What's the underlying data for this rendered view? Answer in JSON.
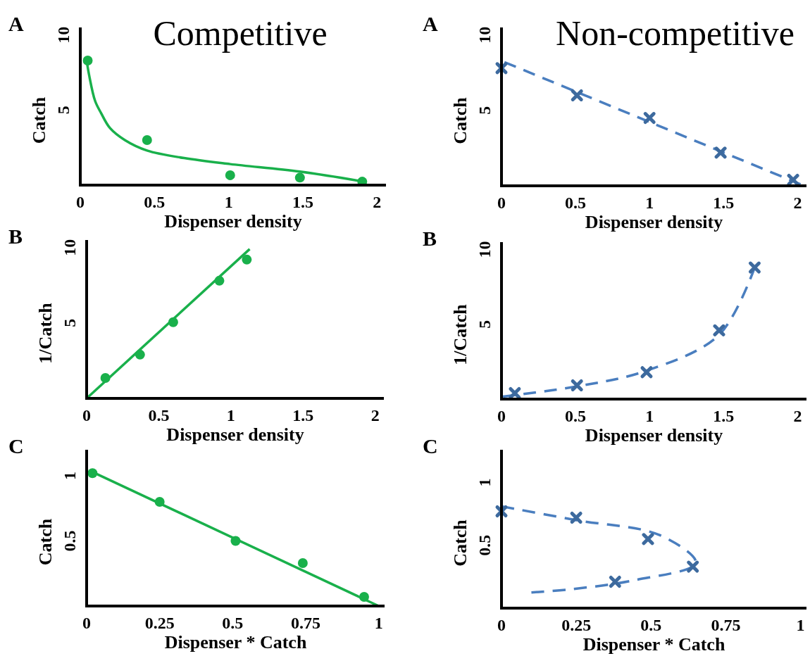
{
  "chart_data": [
    {
      "type": "scatter",
      "title": "Competitive",
      "xlabel": "Dispenser density",
      "ylabel": "Catch",
      "xlim": [
        0,
        2.06
      ],
      "ylim": [
        0,
        10.5
      ],
      "xticks": [
        0,
        0.5,
        1,
        1.5,
        2
      ],
      "yticks": [
        5,
        10
      ],
      "annotations": [
        "A"
      ],
      "series": [
        {
          "type": "scatter",
          "color": "#19b04b",
          "marker": "circle",
          "x": [
            0.05,
            0.45,
            1.01,
            1.48,
            1.9
          ],
          "values": [
            8.3,
            3.0,
            0.66,
            0.5,
            0.23
          ]
        },
        {
          "type": "line",
          "color": "#19b04b",
          "line_style": "solid",
          "x": [
            0.04,
            0.06,
            0.1,
            0.14,
            0.2,
            0.3,
            0.45,
            0.7,
            1.01,
            1.48,
            1.9
          ],
          "values": [
            8.5,
            7.3,
            5.6,
            4.8,
            3.8,
            3.0,
            2.3,
            1.8,
            1.4,
            0.9,
            0.25
          ]
        }
      ]
    },
    {
      "type": "scatter",
      "title": "Non-competitive",
      "xlabel": "Dispenser density",
      "ylabel": "Catch",
      "xlim": [
        0,
        2.06
      ],
      "ylim": [
        0,
        10.5
      ],
      "xticks": [
        0,
        0.5,
        1,
        1.5,
        2
      ],
      "yticks": [
        5,
        10
      ],
      "annotations": [
        "A"
      ],
      "series": [
        {
          "type": "scatter",
          "color": "#3d6a9e",
          "marker": "cross",
          "x": [
            0,
            0.51,
            1.0,
            1.48,
            1.97
          ],
          "values": [
            7.8,
            6.0,
            4.5,
            2.2,
            0.4
          ]
        },
        {
          "type": "line",
          "color": "#4a7ebf",
          "line_style": "dashed",
          "x": [
            0.02,
            2.02
          ],
          "values": [
            8.2,
            0.1
          ]
        }
      ]
    },
    {
      "type": "scatter",
      "xlabel": "Dispenser density",
      "ylabel": "1/Catch",
      "xlim": [
        0,
        2.06
      ],
      "ylim": [
        0,
        10.5
      ],
      "xticks": [
        0,
        0.5,
        1,
        1.5,
        2
      ],
      "yticks": [
        5,
        10
      ],
      "annotations": [
        "B"
      ],
      "series": [
        {
          "type": "scatter",
          "color": "#19b04b",
          "marker": "circle",
          "x": [
            0.13,
            0.37,
            0.6,
            0.92,
            1.11
          ],
          "values": [
            1.35,
            2.9,
            5.05,
            7.8,
            9.2
          ]
        },
        {
          "type": "line",
          "color": "#19b04b",
          "line_style": "solid",
          "x": [
            0,
            1.13
          ],
          "values": [
            0,
            9.9
          ]
        }
      ]
    },
    {
      "type": "scatter",
      "xlabel": "Dispenser density",
      "ylabel": "1/Catch",
      "xlim": [
        0,
        2.06
      ],
      "ylim": [
        0,
        10.5
      ],
      "xticks": [
        0,
        0.5,
        1,
        1.5,
        2
      ],
      "yticks": [
        5,
        10
      ],
      "annotations": [
        "B"
      ],
      "series": [
        {
          "type": "scatter",
          "color": "#3d6a9e",
          "marker": "cross",
          "x": [
            0.09,
            0.51,
            0.98,
            1.47,
            1.71
          ],
          "values": [
            0.4,
            0.92,
            1.8,
            4.6,
            8.8
          ]
        },
        {
          "type": "line",
          "color": "#4a7ebf",
          "line_style": "dashed",
          "x": [
            0.01,
            0.51,
            0.98,
            1.47,
            1.71
          ],
          "values": [
            0.17,
            0.85,
            1.9,
            4.3,
            8.8
          ]
        }
      ]
    },
    {
      "type": "scatter",
      "xlabel": "Dispenser * Catch",
      "ylabel": "Catch",
      "xlim": [
        0,
        1.02
      ],
      "ylim": [
        0,
        1.2
      ],
      "xticks": [
        0,
        0.25,
        0.5,
        0.75,
        1
      ],
      "yticks": [
        0.5,
        1
      ],
      "annotations": [
        "C"
      ],
      "series": [
        {
          "type": "scatter",
          "color": "#19b04b",
          "marker": "circle",
          "x": [
            0.02,
            0.25,
            0.51,
            0.74,
            0.95
          ],
          "values": [
            1.02,
            0.8,
            0.5,
            0.33,
            0.07
          ]
        },
        {
          "type": "line",
          "color": "#19b04b",
          "line_style": "solid",
          "x": [
            0.01,
            1.0
          ],
          "values": [
            1.04,
            0
          ]
        }
      ]
    },
    {
      "type": "scatter",
      "xlabel": "Dispenser * Catch",
      "ylabel": "Catch",
      "xlim": [
        0,
        1.02
      ],
      "ylim": [
        0,
        1.26
      ],
      "xticks": [
        0,
        0.25,
        0.5,
        0.75,
        1
      ],
      "yticks": [
        0.5,
        1
      ],
      "annotations": [
        "C"
      ],
      "series": [
        {
          "type": "scatter",
          "color": "#3d6a9e",
          "marker": "cross",
          "x": [
            0,
            0.25,
            0.49,
            0.64,
            0.38
          ],
          "values": [
            0.77,
            0.72,
            0.55,
            0.33,
            0.21
          ]
        },
        {
          "type": "line",
          "color": "#4a7ebf",
          "line_style": "dashed",
          "x": [
            0,
            0.25,
            0.53,
            0.65,
            0.44,
            0.23,
            0.1
          ],
          "values": [
            0.81,
            0.7,
            0.58,
            0.36,
            0.22,
            0.15,
            0.125
          ]
        }
      ]
    }
  ]
}
